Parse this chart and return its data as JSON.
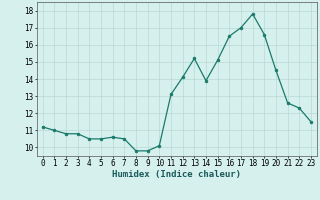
{
  "x": [
    0,
    1,
    2,
    3,
    4,
    5,
    6,
    7,
    8,
    9,
    10,
    11,
    12,
    13,
    14,
    15,
    16,
    17,
    18,
    19,
    20,
    21,
    22,
    23
  ],
  "y": [
    11.2,
    11.0,
    10.8,
    10.8,
    10.5,
    10.5,
    10.6,
    10.5,
    9.8,
    9.8,
    10.1,
    13.1,
    14.1,
    15.2,
    13.9,
    15.1,
    16.5,
    17.0,
    17.8,
    16.6,
    14.5,
    12.6,
    12.3,
    11.5
  ],
  "line_color": "#1a7a6a",
  "marker": "o",
  "marker_size": 2,
  "bg_color": "#d6f0ee",
  "grid_color": "#b8d8d4",
  "xlabel": "Humidex (Indice chaleur)",
  "ylim": [
    9.5,
    18.5
  ],
  "xlim": [
    -0.5,
    23.5
  ],
  "yticks": [
    10,
    11,
    12,
    13,
    14,
    15,
    16,
    17,
    18
  ],
  "xticks": [
    0,
    1,
    2,
    3,
    4,
    5,
    6,
    7,
    8,
    9,
    10,
    11,
    12,
    13,
    14,
    15,
    16,
    17,
    18,
    19,
    20,
    21,
    22,
    23
  ],
  "tick_fontsize": 5.5,
  "label_fontsize": 6.5,
  "line_width": 0.9
}
